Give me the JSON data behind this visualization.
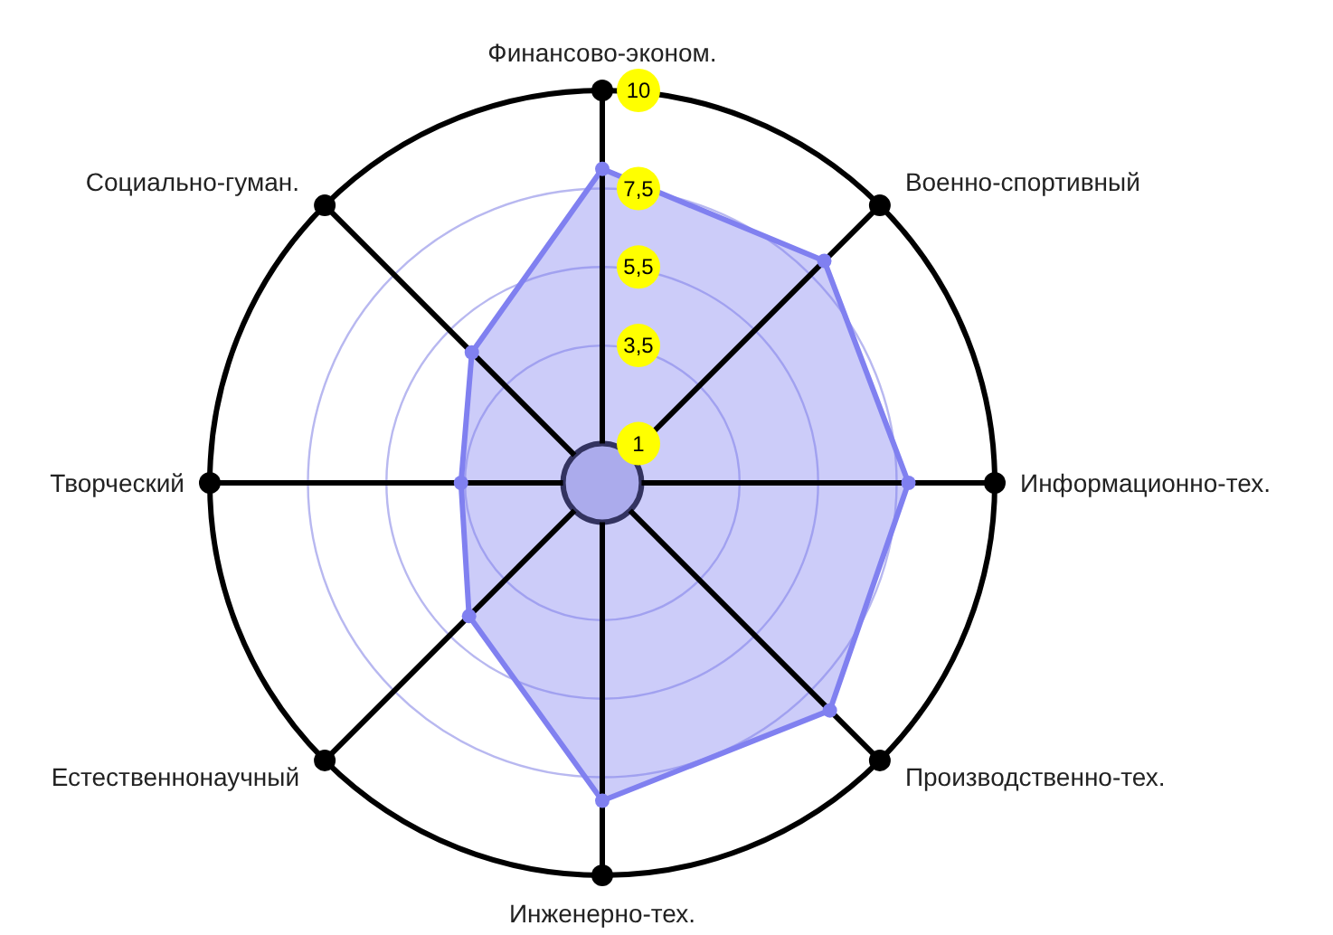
{
  "chart_data": {
    "type": "radar",
    "categories": [
      "Финансово-эконом.",
      "Военно-спортивный",
      "Информационно-тех.",
      "Производственно-тех.",
      "Инженерно-тех.",
      "Естественнонаучный",
      "Творческий",
      "Социально-гуман."
    ],
    "series": [
      {
        "color": "#8080f0",
        "values": [
          8,
          8,
          7.8,
          8.2,
          8.1,
          4.8,
          3.6,
          4.7
        ]
      }
    ],
    "ylim": [
      0,
      10
    ],
    "yticks": [
      1,
      {
        "value": 3.5,
        "label": "3,5"
      },
      {
        "value": 5.5,
        "label": "5,5"
      },
      {
        "value": 7.5,
        "label": "7,5"
      },
      10
    ],
    "grid": true,
    "marker": "circle"
  }
}
